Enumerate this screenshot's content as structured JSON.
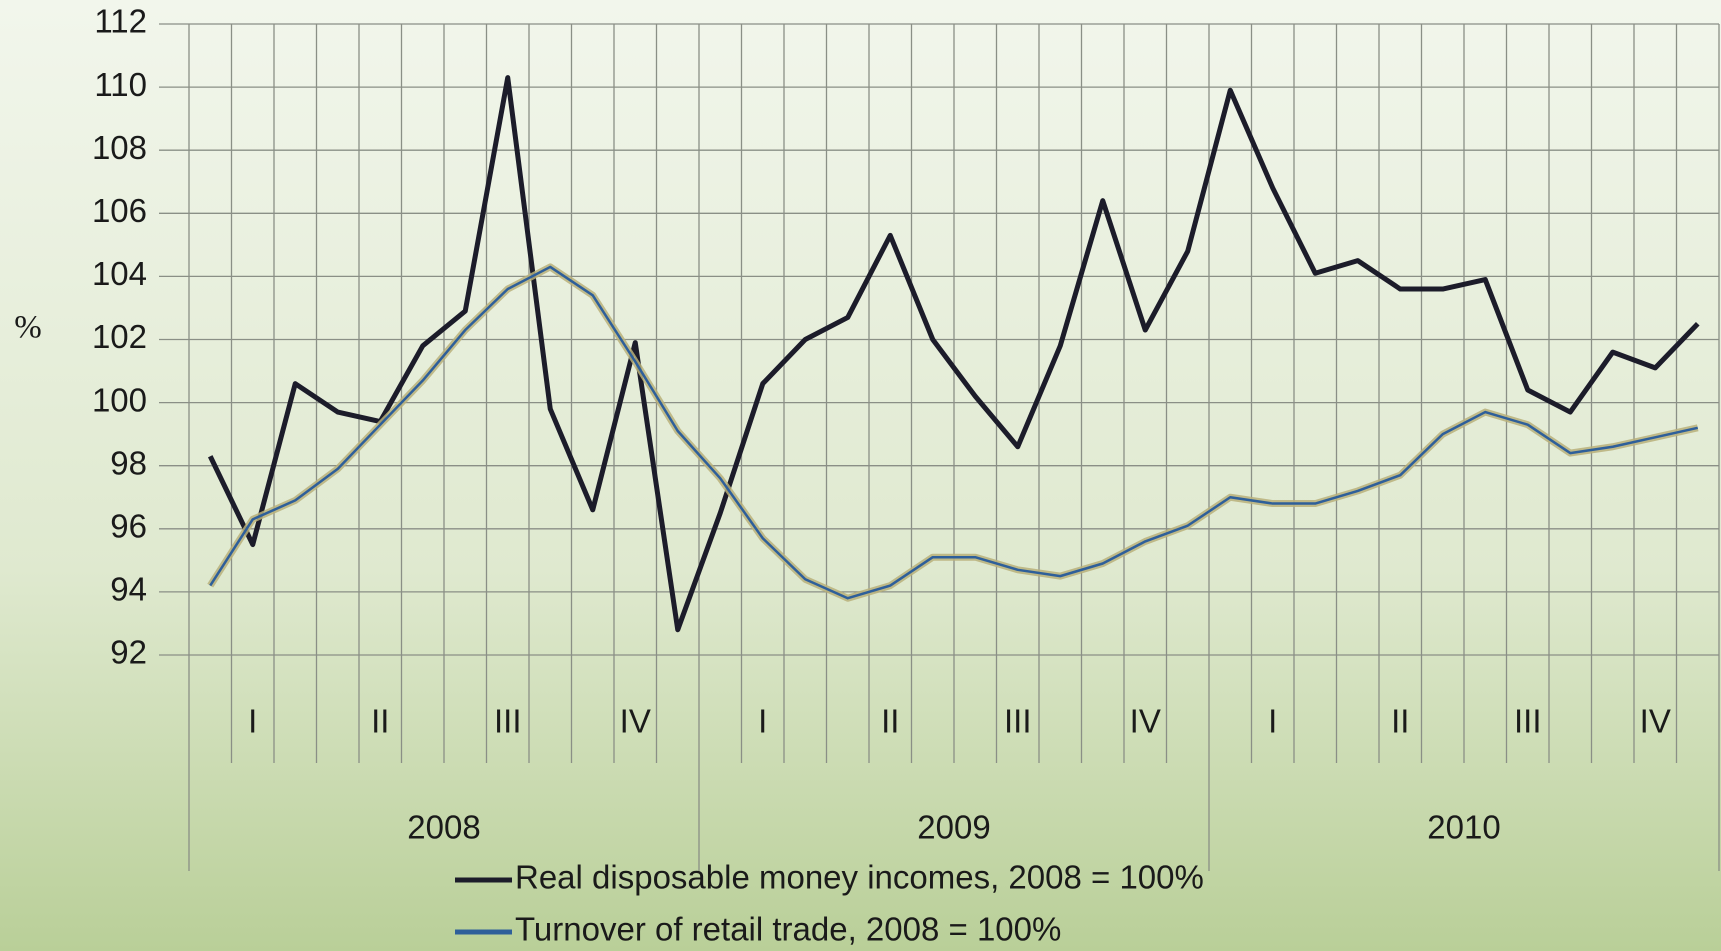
{
  "chart_data": {
    "type": "line",
    "y_label": "%",
    "quarters": [
      "I",
      "II",
      "III",
      "IV",
      "I",
      "II",
      "III",
      "IV",
      "I",
      "II",
      "III",
      "IV"
    ],
    "years": [
      "2008",
      "2009",
      "2010"
    ],
    "series": [
      {
        "name": "Real disposable money incomes, 2008 = 100%",
        "color": "#1c1c2a",
        "values": [
          98.3,
          95.5,
          100.6,
          99.7,
          99.4,
          101.8,
          102.9,
          110.3,
          99.8,
          96.6,
          101.9,
          92.8,
          96.5,
          100.6,
          102.0,
          102.7,
          105.3,
          102.0,
          100.2,
          98.6,
          101.8,
          106.4,
          102.3,
          104.8,
          109.9,
          106.8,
          104.1,
          104.5,
          103.6,
          103.6,
          103.9,
          100.4,
          99.7,
          101.6,
          101.1,
          102.5
        ]
      },
      {
        "name": "Turnover of retail trade, 2008 = 100%",
        "color": "#2e5f9a",
        "values": [
          94.2,
          96.3,
          96.9,
          97.9,
          99.3,
          100.7,
          102.3,
          103.6,
          104.3,
          103.4,
          101.3,
          99.1,
          97.6,
          95.7,
          94.4,
          93.8,
          94.2,
          95.1,
          95.1,
          94.7,
          94.5,
          94.9,
          95.6,
          96.1,
          97.0,
          96.8,
          96.8,
          97.2,
          97.7,
          99.0,
          99.7,
          99.3,
          98.4,
          98.6,
          98.9,
          99.2
        ]
      }
    ],
    "ylim": [
      92,
      112
    ],
    "yticks": [
      92,
      94,
      96,
      98,
      100,
      102,
      104,
      106,
      108,
      110,
      112
    ],
    "grid": true
  }
}
